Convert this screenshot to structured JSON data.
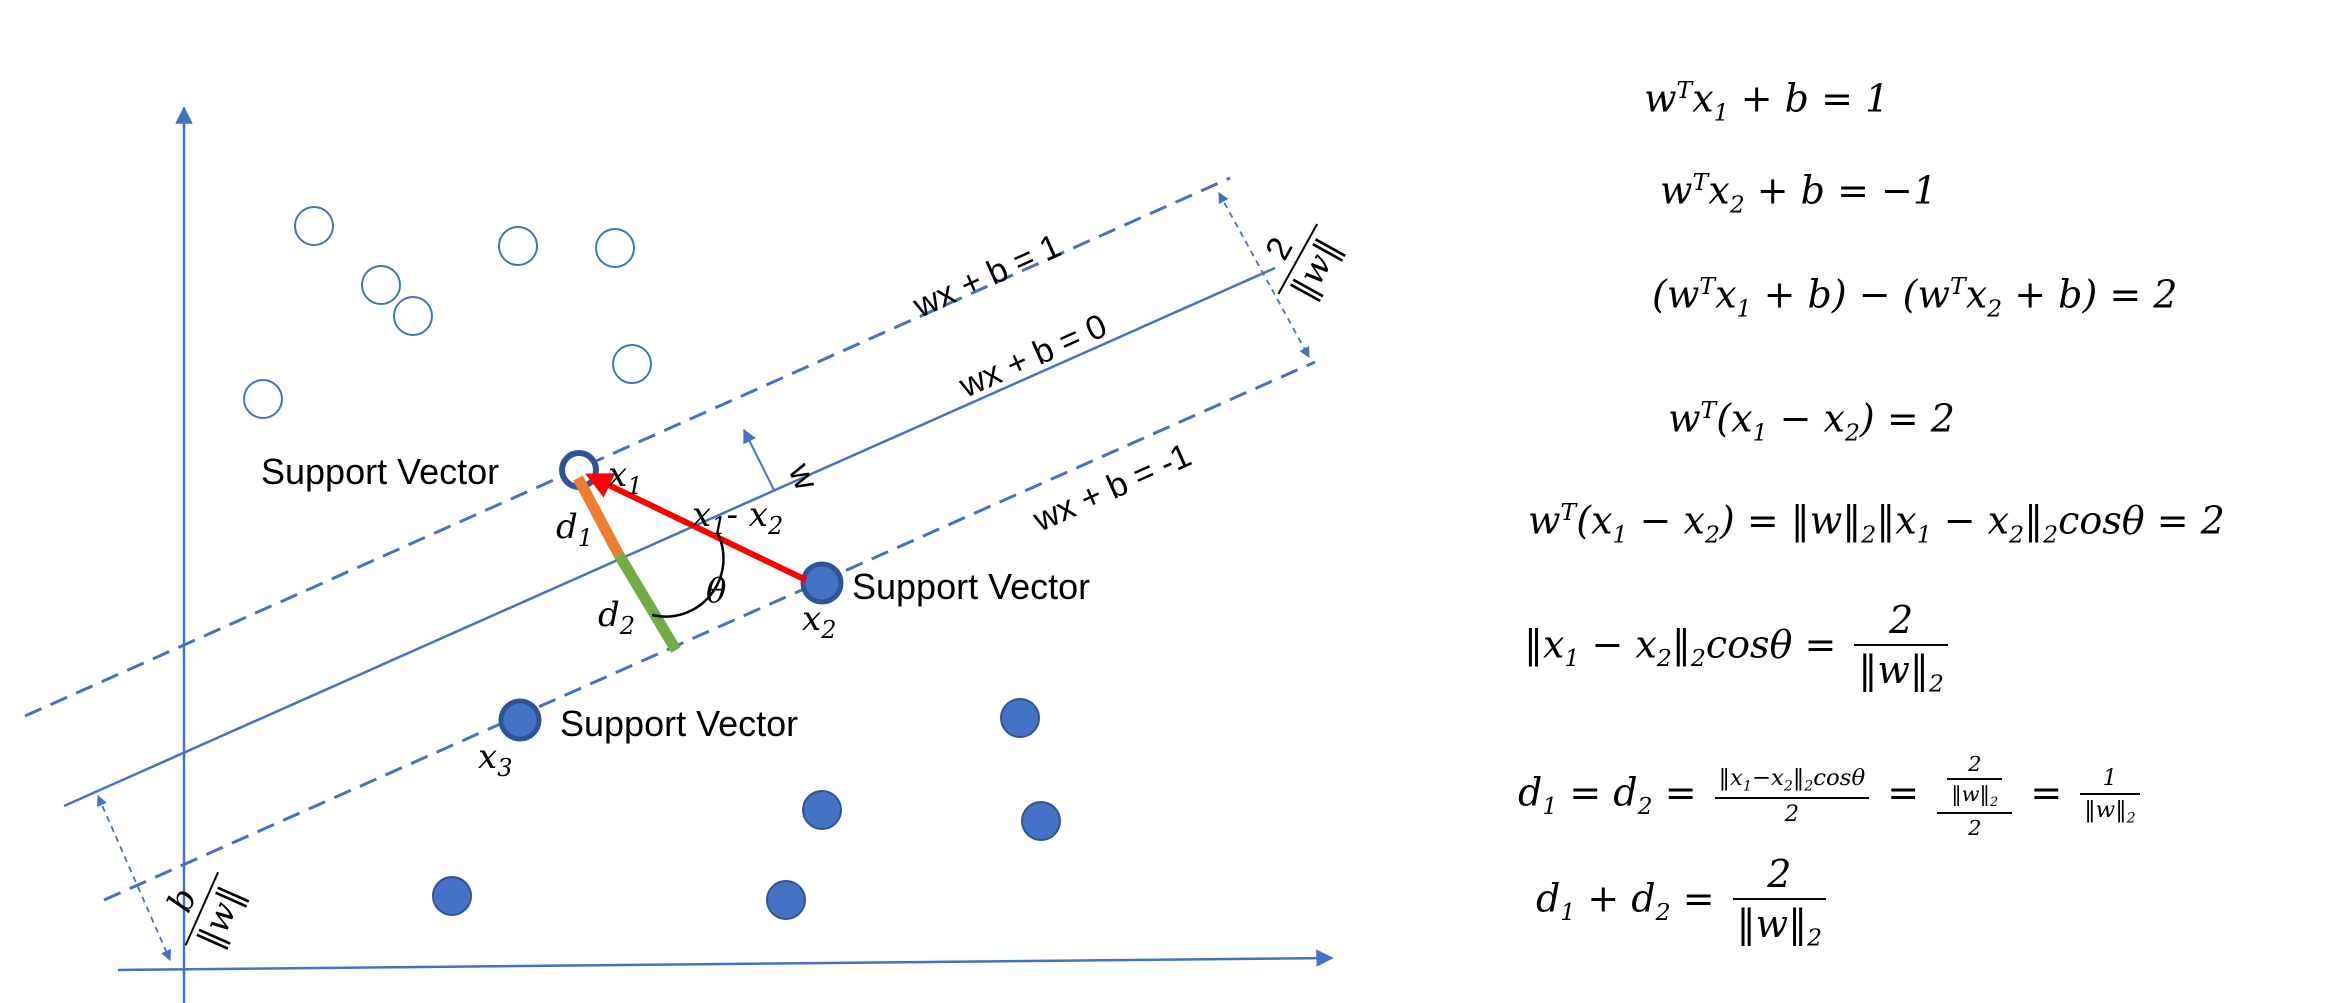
{
  "diagram": {
    "label_margin_pos": "wx + b = 1",
    "label_hyperplane": "wx + b = 0",
    "label_margin_neg": "wx + b = -1",
    "label_w": "w",
    "label_support_vector_1": "Support Vector",
    "label_support_vector_2": "Support Vector",
    "label_support_vector_3": "Support Vector",
    "label_x1": "x",
    "label_x1_sub": "1",
    "label_x2": "x",
    "label_x2_sub": "2",
    "label_x3": "x",
    "label_x3_sub": "3",
    "label_d1": "d",
    "label_d1_sub": "1",
    "label_d2": "d",
    "label_d2_sub": "2",
    "label_theta": "θ",
    "label_diff": "x",
    "label_diff_sub1": "1",
    "label_diff_minus": "- x",
    "label_diff_sub2": "2",
    "margin_num": "2",
    "margin_den": "‖w‖",
    "offset_num": "b",
    "offset_den": "‖w‖"
  },
  "colors": {
    "axis": "#4472C4",
    "positive_point": "#4472C4",
    "vector_diff": "#FF0000",
    "d1_segment": "#ED7D31",
    "d2_segment": "#70AD47"
  },
  "equations": {
    "eq1": {
      "w": "w",
      "T": "T",
      "x": "x",
      "s1": "1",
      "rest": " + b = 1"
    },
    "eq2": {
      "w": "w",
      "T": "T",
      "x": "x",
      "s2": "2",
      "rest": " + b = −1"
    },
    "eq3": {
      "open": "(w",
      "T1": "T",
      "x1": "x",
      "s1": "1",
      "mid": " + b) − (w",
      "T2": "T",
      "x2": "x",
      "s2": "2",
      "rest": " + b) = 2"
    },
    "eq4": {
      "w": "w",
      "T": "T",
      "open": "(x",
      "s1": "1",
      "minus": " − x",
      "s2": "2",
      "rest": ")  = 2"
    },
    "eq5": {
      "w": "w",
      "T": "T",
      "open": "(x",
      "s1": "1",
      "minus": " − x",
      "s2": "2",
      "mid": ") = ‖w‖",
      "n1": "2",
      "mid2": "‖x",
      "s3": "1",
      "minus2": " − x",
      "s4": "2",
      "close": "‖",
      "n2": "2",
      "rest": "cosθ = 2"
    },
    "eq6": {
      "lhs": "‖x",
      "s1": "1",
      "minus": " − x",
      "s2": "2",
      "close": "‖",
      "n1": "2",
      "cos": "cosθ = ",
      "num": "2",
      "den": "‖w‖",
      "den_sub": "2"
    },
    "eq7": {
      "d1": "d",
      "s1": "1",
      "eq1": " = d",
      "s2": "2",
      "eq2": " =",
      "f1_num": "‖x",
      "f1_s1": "1",
      "f1_minus": "−x",
      "f1_s2": "2",
      "f1_close": "‖",
      "f1_n": "2",
      "f1_cos": "cosθ",
      "f1_den": "2",
      "eq3": "=",
      "f2_inner_num": "2",
      "f2_inner_den": "‖w‖",
      "f2_inner_sub": "2",
      "f2_den": "2",
      "eq4": "=",
      "f3_num": "1",
      "f3_den": "‖w‖",
      "f3_sub": "2"
    },
    "eq8": {
      "d1": "d",
      "s1": "1",
      "plus": " + d",
      "s2": "2",
      "eq": " = ",
      "num": "2",
      "den": "‖w‖",
      "den_sub": "2"
    }
  }
}
